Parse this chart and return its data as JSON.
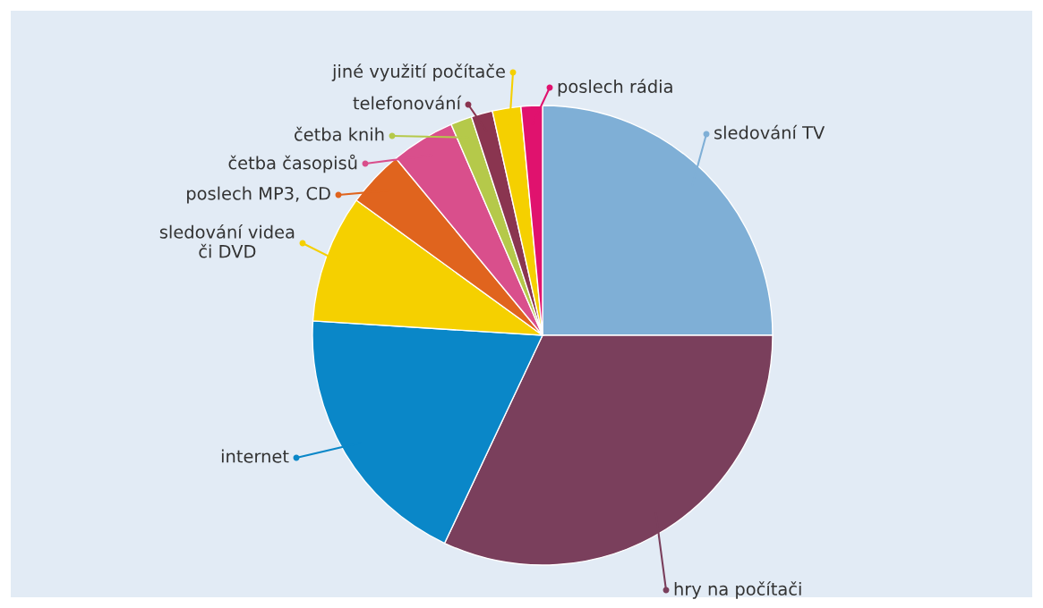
{
  "chart_data": {
    "type": "pie",
    "categories": [
      "sledování TV",
      "hry na počítači",
      "internet",
      "sledování videa\nči DVD",
      "poslech MP3, CD",
      "četba časopisů",
      "četba knih",
      "telefonování",
      "jiné využití počítače",
      "poslech rádia"
    ],
    "values": [
      25,
      32,
      19,
      9,
      4,
      4.5,
      1.5,
      1.5,
      2,
      1.5
    ],
    "colors": [
      "#7fafd6",
      "#7a3f5c",
      "#0a87c8",
      "#f5d000",
      "#e0641e",
      "#d94f8c",
      "#b5c94a",
      "#8a3550",
      "#f5d000",
      "#e0126e"
    ],
    "legend": "left"
  }
}
